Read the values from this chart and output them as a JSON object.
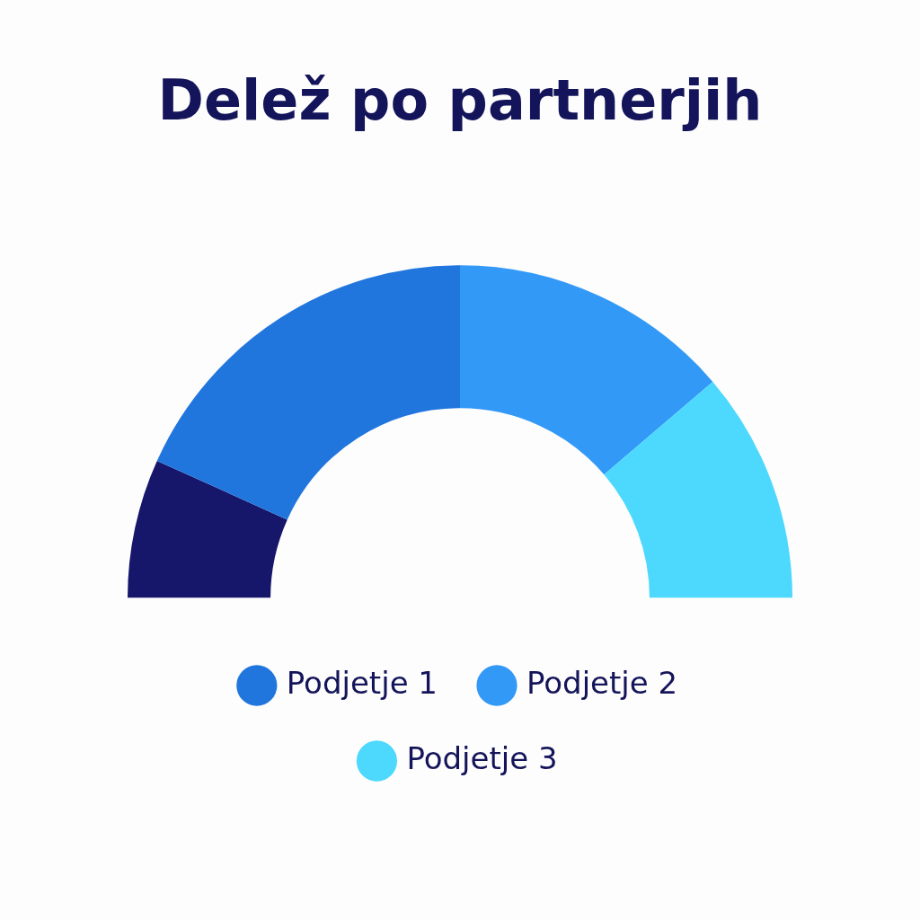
{
  "chart_data": {
    "type": "donut",
    "title": "Delež po partnerjih",
    "categories": [
      null,
      "Podjetje 1",
      "Podjetje 2",
      "Podjetje 3"
    ],
    "values": [
      13.5,
      36.5,
      27.5,
      22.5
    ],
    "colors": [
      "#16166b",
      "#2176de",
      "#3399f7",
      "#4dd9fd"
    ],
    "legend": "bottom"
  }
}
